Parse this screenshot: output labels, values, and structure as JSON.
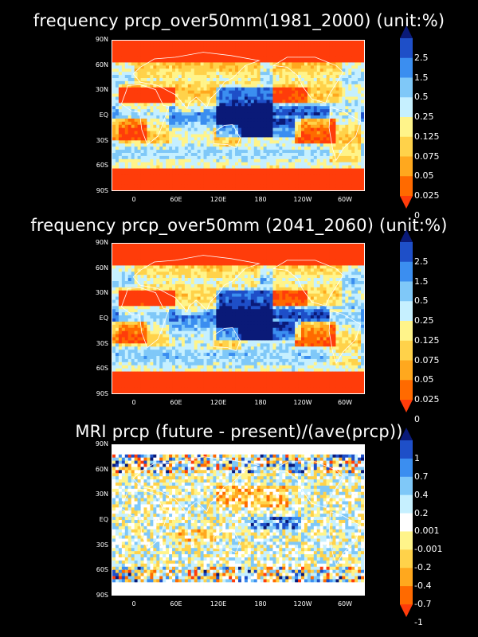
{
  "panels": [
    {
      "title": "frequency  prcp_over50mm(1981_2000)  (unit:%)",
      "lat_labels": [
        "90N",
        "60N",
        "30N",
        "EQ",
        "30S",
        "60S",
        "90S"
      ],
      "lon_labels": [
        "0",
        "60E",
        "120E",
        "180",
        "120W",
        "60W"
      ],
      "colorbar_labels": [
        "2.5",
        "1.5",
        "0.5",
        "0.25",
        "0.125",
        "0.075",
        "0.05",
        "0.025",
        "0"
      ],
      "colorbar_colors": [
        "#0a1a78",
        "#1e4fc8",
        "#3b8ef0",
        "#7fc8f8",
        "#c6f0ff",
        "#fff48a",
        "#ffd24a",
        "#ffa81e",
        "#ff6a00",
        "#ff3c0a"
      ],
      "scenario": "present"
    },
    {
      "title": "frequency  prcp_over50mm  (2041_2060)  (unit:%)",
      "lat_labels": [
        "90N",
        "60N",
        "30N",
        "EQ",
        "30S",
        "60S",
        "90S"
      ],
      "lon_labels": [
        "0",
        "60E",
        "120E",
        "180",
        "120W",
        "60W"
      ],
      "colorbar_labels": [
        "2.5",
        "1.5",
        "0.5",
        "0.25",
        "0.125",
        "0.075",
        "0.05",
        "0.025",
        "0"
      ],
      "colorbar_colors": [
        "#0a1a78",
        "#1e4fc8",
        "#3b8ef0",
        "#7fc8f8",
        "#c6f0ff",
        "#fff48a",
        "#ffd24a",
        "#ffa81e",
        "#ff6a00",
        "#ff3c0a"
      ],
      "scenario": "future"
    },
    {
      "title": "MRI  prcp  (future  -  present)/(ave(prcp))",
      "lat_labels": [
        "90N",
        "60N",
        "30N",
        "EQ",
        "30S",
        "60S",
        "90S"
      ],
      "lon_labels": [
        "0",
        "60E",
        "120E",
        "180",
        "120W",
        "60W"
      ],
      "colorbar_labels": [
        "1",
        "0.7",
        "0.4",
        "0.2",
        "0.001",
        "-0.001",
        "-0.2",
        "-0.4",
        "-0.7",
        "-1"
      ],
      "colorbar_colors": [
        "#0a1a78",
        "#1e4fc8",
        "#3b8ef0",
        "#7fc8f8",
        "#c6f0ff",
        "#ffffff",
        "#fff48a",
        "#ffd24a",
        "#ffa81e",
        "#ff6a00",
        "#ff3c0a"
      ],
      "scenario": "difference"
    }
  ]
}
